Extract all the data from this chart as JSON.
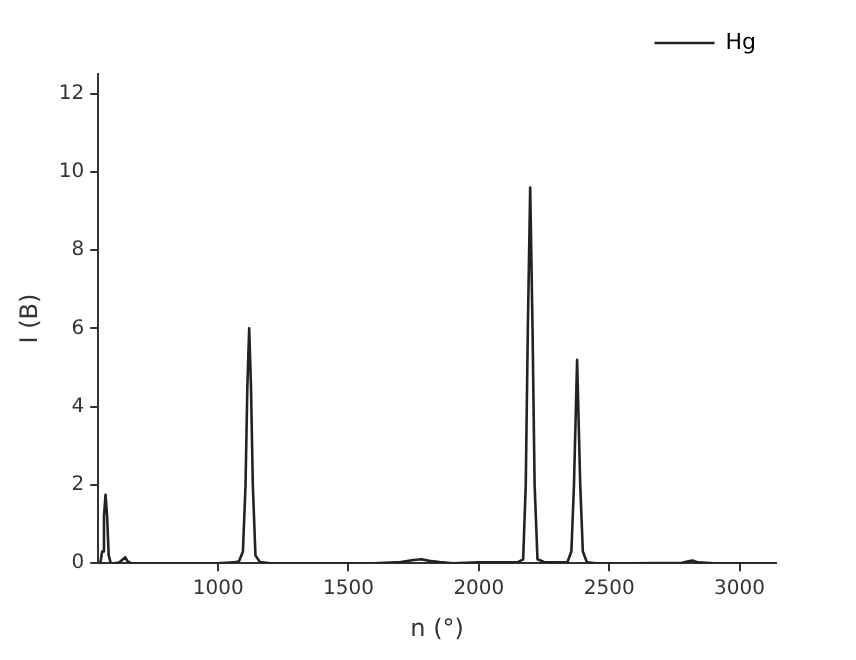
{
  "chart_data": {
    "type": "line",
    "xlabel": "n (°)",
    "ylabel": "I (B)",
    "xlim": [
      540,
      3140
    ],
    "ylim": [
      0,
      12.5
    ],
    "xticks": [
      1000,
      1500,
      2000,
      2500,
      3000
    ],
    "yticks": [
      0,
      2,
      4,
      6,
      8,
      10,
      12
    ],
    "legend": "top right",
    "marker": "none",
    "line_style": "solid",
    "grid": false,
    "x": [
      540,
      548,
      555,
      562,
      568,
      574,
      580,
      588,
      600,
      620,
      635,
      644,
      652,
      665,
      700,
      800,
      900,
      1000,
      1060,
      1080,
      1095,
      1105,
      1112,
      1119,
      1126,
      1133,
      1143,
      1160,
      1200,
      1400,
      1600,
      1700,
      1750,
      1780,
      1810,
      1850,
      1900,
      2000,
      2100,
      2150,
      2170,
      2180,
      2188,
      2197,
      2206,
      2214,
      2225,
      2250,
      2300,
      2340,
      2355,
      2365,
      2377,
      2389,
      2399,
      2415,
      2450,
      2600,
      2780,
      2800,
      2820,
      2840,
      2900,
      3000,
      3140
    ],
    "series": [
      {
        "name": "Hg",
        "color": "#222222",
        "values": [
          0,
          0,
          0.3,
          1.2,
          1.75,
          1.2,
          0.2,
          0,
          0,
          0.02,
          0.1,
          0.15,
          0.05,
          0,
          0,
          0,
          0,
          0,
          0.02,
          0.05,
          0.3,
          2.0,
          4.5,
          6.0,
          4.5,
          2.0,
          0.2,
          0.03,
          0,
          0,
          0,
          0.03,
          0.08,
          0.1,
          0.06,
          0.03,
          0,
          0.02,
          0.02,
          0.03,
          0.1,
          2.0,
          6.0,
          9.6,
          6.0,
          2.0,
          0.1,
          0.03,
          0.02,
          0.03,
          0.3,
          2.0,
          5.2,
          2.0,
          0.3,
          0.02,
          0,
          0,
          0.01,
          0.04,
          0.07,
          0.02,
          0,
          0,
          0
        ]
      }
    ]
  }
}
